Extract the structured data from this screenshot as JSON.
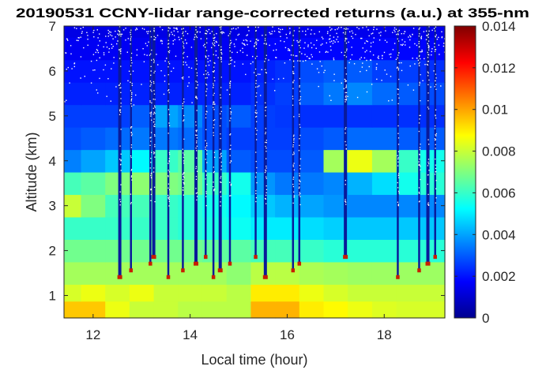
{
  "chart_data": {
    "type": "heatmap",
    "title": "20190531 CCNY-lidar range-corrected returns (a.u.) at 355-nm",
    "xlabel": "Local time (hour)",
    "ylabel": "Altitude (km)",
    "xlim": [
      11.4,
      19.25
    ],
    "ylim": [
      0.5,
      7
    ],
    "xticks": [
      12,
      14,
      16,
      18
    ],
    "yticks": [
      1,
      2,
      3,
      4,
      5,
      6,
      7
    ],
    "colorbar": {
      "colormap": "jet",
      "range": [
        0,
        0.014
      ],
      "ticks": [
        "0",
        "0.002",
        "0.004",
        "0.006",
        "0.008",
        "0.01",
        "0.012",
        "0.014"
      ],
      "tick_values": [
        0,
        0.002,
        0.004,
        0.006,
        0.008,
        0.01,
        0.012,
        0.014
      ]
    },
    "time_axis_hours": [
      11.5,
      12.0,
      12.5,
      13.0,
      13.5,
      14.0,
      14.5,
      15.0,
      15.5,
      16.0,
      16.5,
      17.0,
      17.5,
      18.0,
      18.5,
      19.0
    ],
    "altitude_axis_km": [
      0.75,
      1.0,
      1.5,
      2.0,
      2.5,
      3.0,
      3.5,
      4.0,
      4.5,
      5.0,
      5.5,
      6.0,
      6.5,
      7.0
    ],
    "values": [
      [
        0.0095,
        0.0095,
        0.0085,
        0.008,
        0.008,
        0.0078,
        0.0078,
        0.0078,
        0.0098,
        0.0098,
        0.009,
        0.0088,
        0.0085,
        0.0083,
        0.0082,
        0.0082
      ],
      [
        0.0082,
        0.0085,
        0.0082,
        0.0085,
        0.008,
        0.008,
        0.008,
        0.0078,
        0.009,
        0.009,
        0.0085,
        0.0082,
        0.008,
        0.008,
        0.008,
        0.008
      ],
      [
        0.0075,
        0.0075,
        0.0075,
        0.0075,
        0.0075,
        0.0075,
        0.0075,
        0.0072,
        0.0078,
        0.0078,
        0.0076,
        0.0075,
        0.0074,
        0.0074,
        0.0074,
        0.0074
      ],
      [
        0.0068,
        0.0068,
        0.0068,
        0.0068,
        0.0068,
        0.0068,
        0.0066,
        0.0065,
        0.0062,
        0.0062,
        0.006,
        0.0058,
        0.0058,
        0.0058,
        0.0058,
        0.0058
      ],
      [
        0.006,
        0.006,
        0.006,
        0.006,
        0.006,
        0.0058,
        0.0056,
        0.0054,
        0.005,
        0.005,
        0.0048,
        0.0046,
        0.0045,
        0.0045,
        0.0045,
        0.0045
      ],
      [
        0.008,
        0.007,
        0.0062,
        0.0062,
        0.006,
        0.0058,
        0.0055,
        0.0052,
        0.0045,
        0.0042,
        0.004,
        0.0038,
        0.0036,
        0.0036,
        0.0036,
        0.0036
      ],
      [
        0.0062,
        0.0065,
        0.007,
        0.0072,
        0.007,
        0.0068,
        0.006,
        0.0055,
        0.0038,
        0.0034,
        0.0034,
        0.0036,
        0.0042,
        0.0048,
        0.0055,
        0.0058
      ],
      [
        0.0035,
        0.004,
        0.0045,
        0.0052,
        0.006,
        0.0065,
        0.004,
        0.003,
        0.0028,
        0.0028,
        0.003,
        0.0075,
        0.0085,
        0.0075,
        0.006,
        0.0055
      ],
      [
        0.0028,
        0.003,
        0.0032,
        0.0034,
        0.0034,
        0.0032,
        0.0028,
        0.0026,
        0.0026,
        0.0026,
        0.0028,
        0.003,
        0.0032,
        0.0032,
        0.003,
        0.003
      ],
      [
        0.0026,
        0.0026,
        0.0026,
        0.003,
        0.004,
        0.0036,
        0.0028,
        0.003,
        0.0026,
        0.0025,
        0.0024,
        0.0024,
        0.0024,
        0.0024,
        0.0024,
        0.0024
      ],
      [
        0.0022,
        0.0022,
        0.0022,
        0.0022,
        0.0022,
        0.0022,
        0.0022,
        0.0022,
        0.0024,
        0.0026,
        0.003,
        0.0034,
        0.0036,
        0.0032,
        0.003,
        0.0028
      ],
      [
        0.002,
        0.002,
        0.002,
        0.002,
        0.002,
        0.002,
        0.002,
        0.002,
        0.0022,
        0.0024,
        0.0028,
        0.003,
        0.003,
        0.0026,
        0.0026,
        0.0024
      ],
      [
        0.0016,
        0.0016,
        0.0016,
        0.0016,
        0.0016,
        0.0016,
        0.0016,
        0.0016,
        0.0018,
        0.0018,
        0.0018,
        0.0018,
        0.0018,
        0.0018,
        0.0018,
        0.0018
      ],
      [
        0.0014,
        0.0014,
        0.0014,
        0.0014,
        0.0014,
        0.0014,
        0.0014,
        0.0014,
        0.0015,
        0.0015,
        0.0015,
        0.0015,
        0.0015,
        0.0015,
        0.0015,
        0.0015
      ]
    ],
    "cloud_columns_hours": [
      12.55,
      12.78,
      13.18,
      13.25,
      13.55,
      13.85,
      14.12,
      14.32,
      14.48,
      14.62,
      14.82,
      15.35,
      15.55,
      16.12,
      16.25,
      17.2,
      18.28,
      18.72,
      18.9,
      19.05
    ]
  }
}
